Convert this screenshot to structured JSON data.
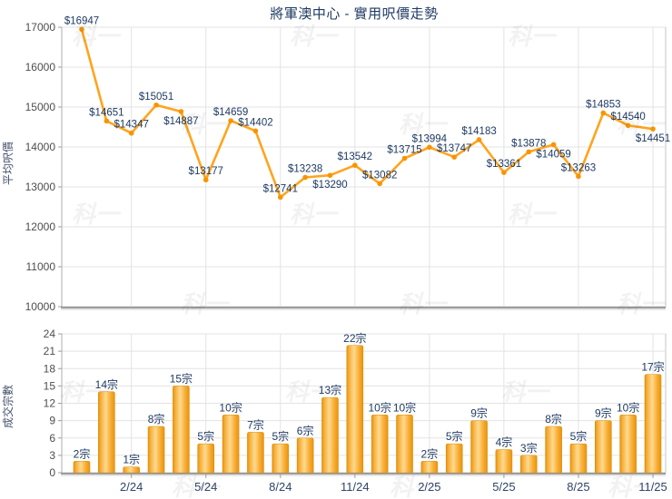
{
  "title": "將軍澳中心 - 實用呎價走勢",
  "watermark_text": "科一",
  "colors": {
    "accent_orange": "#FFA41D",
    "point_orange": "#F79400",
    "bar_edge": "#E8930C",
    "bar_mid": "#FFDA90",
    "bar_stroke": "#DC8E06",
    "label_navy": "#1F3A63",
    "tick_grey": "#4D4D4D",
    "date_navy": "#2E4468",
    "grid": "#E3E3E3",
    "border": "#C6C6C6",
    "axis_dark": "#9C9C9C"
  },
  "chart_data": [
    {
      "type": "line",
      "title": "將軍澳中心 - 實用呎價走勢",
      "ylabel": "平均呎價",
      "xlabel": "",
      "ylim": [
        10000,
        17000
      ],
      "yticks": [
        10000,
        11000,
        12000,
        13000,
        14000,
        15000,
        16000,
        17000
      ],
      "grid": "on",
      "legend": "none",
      "label_prefix": "$",
      "values": [
        16947,
        14651,
        14347,
        15051,
        14887,
        13177,
        14659,
        14402,
        12741,
        13238,
        13290,
        13542,
        13082,
        13715,
        13994,
        13747,
        14183,
        13361,
        13878,
        14059,
        13263,
        14853,
        14540,
        14451
      ],
      "label_side": [
        "above",
        "above",
        "above",
        "above",
        "below",
        "above",
        "above",
        "above",
        "above",
        "above",
        "below",
        "above",
        "above",
        "above",
        "above",
        "above",
        "above",
        "above",
        "above",
        "below",
        "above",
        "above",
        "above",
        "below"
      ],
      "x_ticklabels": [
        "2/24",
        "5/24",
        "8/24",
        "11/24",
        "2/25",
        "5/25",
        "8/25",
        "11/25"
      ],
      "x_tick_indices": [
        2,
        5,
        8,
        11,
        14,
        17,
        20,
        23
      ]
    },
    {
      "type": "bar",
      "ylabel": "成交宗數",
      "xlabel": "",
      "ylim": [
        0,
        24
      ],
      "yticks": [
        0,
        3,
        6,
        9,
        12,
        15,
        18,
        21,
        24
      ],
      "grid": "on",
      "legend": "none",
      "label_suffix": "宗",
      "values": [
        2,
        14,
        1,
        8,
        15,
        5,
        10,
        7,
        5,
        6,
        13,
        22,
        10,
        10,
        2,
        5,
        9,
        4,
        3,
        8,
        5,
        9,
        10,
        17
      ],
      "x_ticklabels": [
        "2/24",
        "5/24",
        "8/24",
        "11/24",
        "2/25",
        "5/25",
        "8/25",
        "11/25"
      ],
      "x_tick_indices": [
        2,
        5,
        8,
        11,
        14,
        17,
        20,
        23
      ]
    }
  ]
}
